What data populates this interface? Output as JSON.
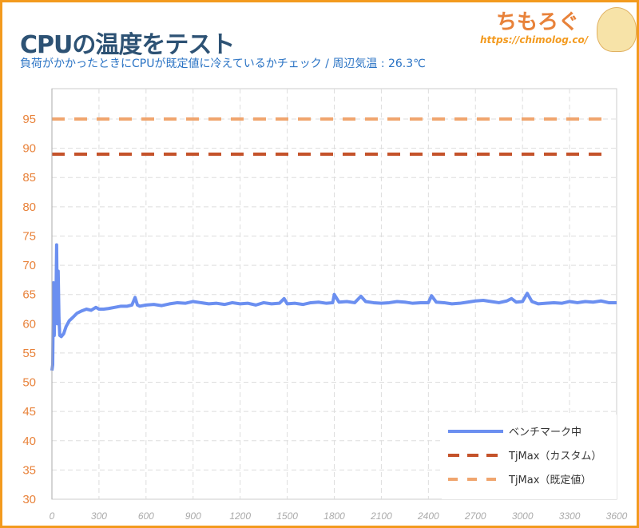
{
  "header": {
    "title": "CPUの温度をテスト",
    "subtitle": "負荷がかかったときにCPUが既定値に冷えているかチェック / 周辺気温 : 26.3℃"
  },
  "logo": {
    "text": "ちもろぐ",
    "url": "https://chimolog.co/"
  },
  "chart_data": {
    "type": "line",
    "title": "CPUの温度をテスト",
    "xlim": [
      0,
      3600
    ],
    "ylim": [
      30,
      97
    ],
    "xticks": [
      0,
      300,
      600,
      900,
      1200,
      1500,
      1800,
      2100,
      2400,
      2700,
      3000,
      3300,
      3600
    ],
    "yticks": [
      30,
      35,
      40,
      45,
      50,
      55,
      60,
      65,
      70,
      75,
      80,
      85,
      90,
      95
    ],
    "grid": true,
    "legend": "bottom-right",
    "series": [
      {
        "name": "ベンチマーク中",
        "color": "#6b8ff0",
        "style": "solid",
        "x": [
          0,
          5,
          10,
          15,
          20,
          25,
          30,
          35,
          40,
          45,
          50,
          60,
          75,
          90,
          110,
          130,
          160,
          190,
          220,
          250,
          280,
          300,
          330,
          360,
          400,
          440,
          480,
          510,
          530,
          545,
          560,
          600,
          650,
          700,
          750,
          800,
          850,
          900,
          950,
          1000,
          1050,
          1100,
          1150,
          1200,
          1250,
          1300,
          1350,
          1400,
          1450,
          1480,
          1500,
          1550,
          1600,
          1650,
          1700,
          1750,
          1790,
          1800,
          1830,
          1880,
          1930,
          1970,
          2000,
          2050,
          2100,
          2150,
          2200,
          2250,
          2300,
          2350,
          2400,
          2420,
          2450,
          2500,
          2550,
          2600,
          2650,
          2700,
          2750,
          2800,
          2850,
          2900,
          2930,
          2960,
          3000,
          3030,
          3060,
          3100,
          3150,
          3200,
          3250,
          3300,
          3350,
          3400,
          3450,
          3500,
          3550,
          3600
        ],
        "y": [
          52,
          53,
          67,
          58,
          66,
          62,
          73.5,
          60,
          69,
          61,
          58,
          57.8,
          58.3,
          59.5,
          60.5,
          61,
          61.8,
          62.2,
          62.5,
          62.3,
          62.8,
          62.5,
          62.5,
          62.6,
          62.8,
          63,
          63,
          63.2,
          64.5,
          63.2,
          63,
          63.2,
          63.3,
          63.1,
          63.4,
          63.6,
          63.5,
          63.8,
          63.6,
          63.4,
          63.5,
          63.3,
          63.6,
          63.4,
          63.5,
          63.2,
          63.6,
          63.4,
          63.5,
          64.3,
          63.4,
          63.5,
          63.3,
          63.6,
          63.7,
          63.5,
          63.6,
          65,
          63.7,
          63.8,
          63.6,
          64.7,
          63.8,
          63.6,
          63.5,
          63.6,
          63.8,
          63.7,
          63.5,
          63.6,
          63.6,
          64.8,
          63.7,
          63.6,
          63.4,
          63.5,
          63.7,
          63.9,
          64,
          63.8,
          63.6,
          63.9,
          64.3,
          63.7,
          63.8,
          65.2,
          63.8,
          63.4,
          63.5,
          63.6,
          63.5,
          63.8,
          63.6,
          63.8,
          63.7,
          63.9,
          63.6,
          63.6
        ]
      },
      {
        "name": "TjMax（カスタム）",
        "color": "#c4522a",
        "style": "dashed",
        "y": 89
      },
      {
        "name": "TjMax（既定値）",
        "color": "#f0a56e",
        "style": "dashed",
        "y": 95
      }
    ]
  }
}
